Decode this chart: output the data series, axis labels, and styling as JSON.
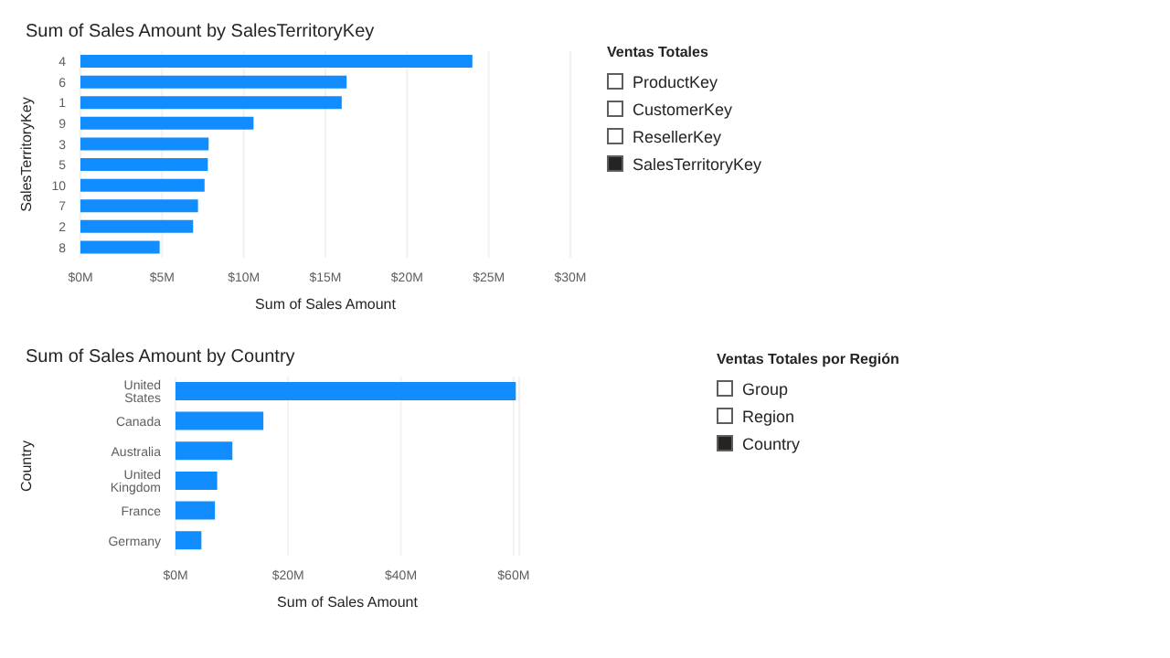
{
  "chart_data": [
    {
      "type": "bar",
      "orientation": "horizontal",
      "title": "Sum of Sales Amount by SalesTerritoryKey",
      "xlabel": "Sum of Sales Amount",
      "ylabel": "SalesTerritoryKey",
      "categories": [
        "4",
        "6",
        "1",
        "9",
        "3",
        "5",
        "10",
        "7",
        "2",
        "8"
      ],
      "values": [
        24.0,
        16.3,
        16.0,
        10.6,
        7.85,
        7.8,
        7.6,
        7.2,
        6.9,
        4.85
      ],
      "color": "#118dff",
      "xlim": [
        0,
        30
      ],
      "xticks": [
        {
          "value": 0,
          "label": "$0M"
        },
        {
          "value": 5,
          "label": "$5M"
        },
        {
          "value": 10,
          "label": "$10M"
        },
        {
          "value": 15,
          "label": "$15M"
        },
        {
          "value": 20,
          "label": "$20M"
        },
        {
          "value": 25,
          "label": "$25M"
        },
        {
          "value": 30,
          "label": "$30M"
        }
      ],
      "grid": "x"
    },
    {
      "type": "other",
      "title": "Ventas Totales",
      "categories": [
        "ProductKey",
        "CustomerKey",
        "ResellerKey",
        "SalesTerritoryKey"
      ],
      "colors": [
        "#ffffff",
        "#ffffff",
        "#ffffff",
        "#252423"
      ]
    },
    {
      "type": "bar",
      "orientation": "horizontal",
      "title": "Sum of Sales Amount by Country",
      "xlabel": "Sum of Sales Amount",
      "ylabel": "Country",
      "categories": [
        "United States",
        "Canada",
        "Australia",
        "United Kingdom",
        "France",
        "Germany"
      ],
      "values": [
        60.4,
        15.6,
        10.1,
        7.4,
        7.0,
        4.6
      ],
      "color": "#118dff",
      "xlim": [
        0,
        61
      ],
      "xticks": [
        {
          "value": 0,
          "label": "$0M"
        },
        {
          "value": 20,
          "label": "$20M"
        },
        {
          "value": 40,
          "label": "$40M"
        },
        {
          "value": 60,
          "label": "$60M"
        }
      ],
      "grid": "x"
    },
    {
      "type": "other",
      "title": "Ventas Totales por Región",
      "categories": [
        "Group",
        "Region",
        "Country"
      ],
      "colors": [
        "#ffffff",
        "#ffffff",
        "#252423"
      ]
    }
  ]
}
